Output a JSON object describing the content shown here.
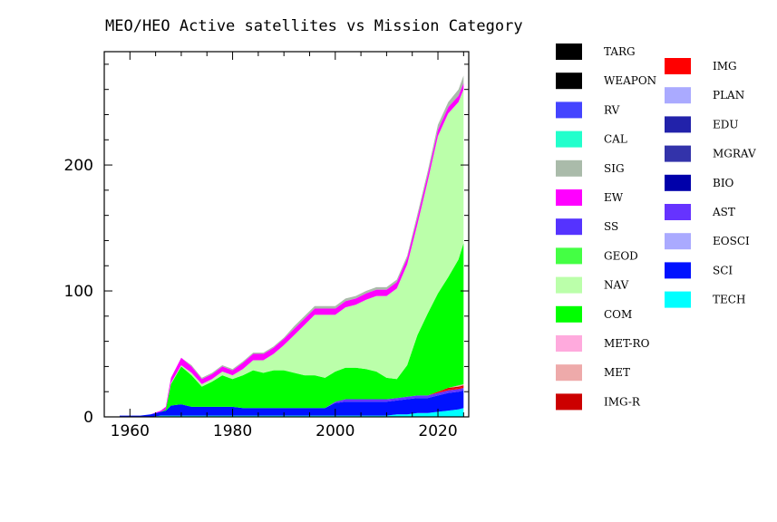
{
  "chart_data": {
    "type": "area",
    "title": "MEO/HEO Active satellites vs Mission Category",
    "xlabel": "",
    "ylabel": "",
    "xlim": [
      1955,
      2026
    ],
    "ylim": [
      0,
      290
    ],
    "x_ticks": [
      1960,
      1980,
      2000,
      2020
    ],
    "x_tick_labels": [
      "1960",
      "1980",
      "2000",
      "2020"
    ],
    "y_ticks": [
      0,
      100,
      200
    ],
    "y_tick_labels": [
      "0",
      "100",
      "200"
    ],
    "grid": false,
    "legend_position": "right",
    "x": [
      1958,
      1962,
      1964,
      1966,
      1967,
      1968,
      1970,
      1972,
      1974,
      1976,
      1978,
      1980,
      1982,
      1984,
      1986,
      1988,
      1990,
      1992,
      1994,
      1996,
      1998,
      2000,
      2002,
      2004,
      2006,
      2008,
      2010,
      2012,
      2014,
      2016,
      2018,
      2020,
      2022,
      2024,
      2025
    ],
    "stack_order": [
      "TECH",
      "SCI",
      "EOSCI",
      "AST",
      "BIO",
      "MGRAV",
      "EDU",
      "PLAN",
      "IMG",
      "IMG-R",
      "MET",
      "MET-RO",
      "COM",
      "NAV",
      "GEOD",
      "SS",
      "EW",
      "SIG",
      "CAL",
      "RV",
      "WEAPON",
      "TARG"
    ],
    "series": [
      {
        "name": "TARG",
        "color": "#000000",
        "values": [
          0,
          0,
          0,
          0,
          0,
          0,
          0,
          0,
          0,
          0,
          0,
          0,
          0,
          0,
          0,
          0,
          0,
          0,
          0,
          0,
          0,
          0,
          0,
          0,
          0,
          0,
          0,
          0,
          0,
          0,
          0,
          0,
          0,
          0,
          0
        ]
      },
      {
        "name": "WEAPON",
        "color": "#000000",
        "values": [
          0,
          0,
          0,
          0,
          0,
          0,
          0,
          0,
          0,
          0,
          0,
          0,
          0,
          0,
          0,
          0,
          0,
          0,
          0,
          0,
          0,
          0,
          0,
          0,
          0,
          0,
          0,
          0,
          0,
          0,
          0,
          0,
          0,
          0,
          0
        ]
      },
      {
        "name": "RV",
        "color": "#4444ff",
        "values": [
          0,
          0,
          0,
          0,
          0,
          0,
          0,
          0,
          0,
          0,
          0,
          0,
          0,
          0,
          0,
          0,
          0,
          0,
          0,
          0,
          0,
          0,
          0,
          0,
          0,
          0,
          0,
          0,
          0,
          0,
          0,
          0,
          0,
          0,
          0
        ]
      },
      {
        "name": "CAL",
        "color": "#22ffcc",
        "values": [
          0,
          0,
          0,
          0,
          0,
          0,
          0,
          0,
          0,
          0,
          0,
          0,
          0,
          0,
          0,
          0,
          0,
          0,
          0,
          0,
          0,
          0,
          0,
          0,
          0,
          0,
          0,
          0,
          0,
          0,
          0,
          0,
          0,
          0,
          0
        ]
      },
      {
        "name": "SIG",
        "color": "#aabbaa",
        "values": [
          0,
          0,
          0,
          0,
          0,
          0,
          0,
          1,
          1,
          1,
          1,
          1,
          1,
          1,
          1,
          1,
          1,
          2,
          2,
          2,
          2,
          2,
          2,
          2,
          2,
          2,
          2,
          2,
          2,
          3,
          3,
          4,
          4,
          5,
          6
        ]
      },
      {
        "name": "EW",
        "color": "#ff00ff",
        "values": [
          0,
          0,
          0,
          1,
          2,
          4,
          6,
          5,
          4,
          4,
          4,
          4,
          5,
          5,
          5,
          5,
          5,
          5,
          5,
          5,
          5,
          5,
          5,
          5,
          5,
          5,
          5,
          5,
          5,
          5,
          5,
          5,
          5,
          5,
          5
        ]
      },
      {
        "name": "SS",
        "color": "#5533ff",
        "values": [
          0,
          0,
          0,
          0,
          0,
          0,
          0,
          0,
          0,
          0,
          0,
          0,
          0,
          0,
          0,
          0,
          0,
          0,
          0,
          0,
          0,
          0,
          0,
          0,
          0,
          0,
          0,
          0,
          0,
          0,
          0,
          0,
          0,
          0,
          0
        ]
      },
      {
        "name": "GEOD",
        "color": "#44ff44",
        "values": [
          0,
          0,
          0,
          0,
          0,
          0,
          0,
          0,
          0,
          0,
          0,
          0,
          0,
          0,
          0,
          0,
          0,
          0,
          0,
          0,
          0,
          0,
          0,
          0,
          0,
          0,
          0,
          0,
          0,
          0,
          0,
          0,
          0,
          0,
          0
        ]
      },
      {
        "name": "NAV",
        "color": "#bbffaa",
        "values": [
          0,
          0,
          0,
          0,
          0,
          1,
          1,
          2,
          2,
          2,
          3,
          3,
          5,
          8,
          10,
          13,
          20,
          30,
          40,
          48,
          50,
          45,
          48,
          50,
          55,
          60,
          65,
          72,
          80,
          88,
          105,
          125,
          130,
          125,
          122
        ]
      },
      {
        "name": "COM",
        "color": "#00ff00",
        "values": [
          0,
          0,
          0,
          0,
          1,
          17,
          30,
          25,
          16,
          20,
          25,
          22,
          26,
          30,
          28,
          30,
          30,
          28,
          26,
          26,
          24,
          24,
          25,
          25,
          24,
          22,
          17,
          15,
          25,
          48,
          65,
          78,
          88,
          100,
          112
        ]
      },
      {
        "name": "MET-RO",
        "color": "#ffaadd",
        "values": [
          0,
          0,
          0,
          0,
          0,
          0,
          0,
          0,
          0,
          0,
          0,
          0,
          0,
          0,
          0,
          0,
          0,
          0,
          0,
          0,
          0,
          0,
          0,
          0,
          0,
          0,
          0,
          0,
          0,
          0,
          0,
          0,
          0,
          0,
          0
        ]
      },
      {
        "name": "MET",
        "color": "#eeaaaa",
        "values": [
          0,
          0,
          0,
          0,
          0,
          0,
          0,
          0,
          0,
          0,
          0,
          0,
          0,
          0,
          0,
          0,
          0,
          0,
          0,
          0,
          0,
          0,
          0,
          0,
          0,
          0,
          0,
          0,
          0,
          0,
          0,
          0,
          0,
          1,
          1
        ]
      },
      {
        "name": "IMG-R",
        "color": "#cc0000",
        "values": [
          0,
          0,
          0,
          0,
          0,
          0,
          0,
          0,
          0,
          0,
          0,
          0,
          0,
          0,
          0,
          0,
          0,
          0,
          0,
          0,
          0,
          0,
          0,
          0,
          0,
          0,
          0,
          0,
          0,
          0,
          0,
          0,
          1,
          1,
          1
        ]
      },
      {
        "name": "IMG",
        "color": "#ff0000",
        "values": [
          0,
          0,
          0,
          0,
          0,
          0,
          0,
          0,
          0,
          0,
          0,
          0,
          0,
          0,
          0,
          0,
          0,
          0,
          0,
          0,
          0,
          0,
          0,
          0,
          0,
          0,
          0,
          0,
          0,
          0,
          0,
          1,
          1,
          1,
          1
        ]
      },
      {
        "name": "PLAN",
        "color": "#aaaaff",
        "values": [
          0,
          0,
          0,
          0,
          0,
          0,
          0,
          0,
          0,
          0,
          0,
          0,
          0,
          0,
          0,
          0,
          0,
          0,
          0,
          0,
          0,
          0,
          0,
          0,
          0,
          0,
          0,
          0,
          0,
          0,
          0,
          0,
          0,
          0,
          0
        ]
      },
      {
        "name": "EDU",
        "color": "#2222aa",
        "values": [
          0,
          0,
          0,
          0,
          0,
          0,
          0,
          0,
          0,
          0,
          0,
          0,
          0,
          0,
          0,
          0,
          0,
          0,
          0,
          0,
          0,
          0,
          0,
          0,
          0,
          0,
          0,
          0,
          0,
          0,
          0,
          0,
          0,
          0,
          0
        ]
      },
      {
        "name": "MGRAV",
        "color": "#3333aa",
        "values": [
          0,
          0,
          0,
          0,
          0,
          0,
          0,
          0,
          0,
          0,
          0,
          0,
          0,
          0,
          0,
          0,
          0,
          0,
          0,
          0,
          0,
          0,
          0,
          0,
          0,
          0,
          0,
          0,
          0,
          0,
          0,
          0,
          0,
          0,
          0
        ]
      },
      {
        "name": "BIO",
        "color": "#0000aa",
        "values": [
          0,
          0,
          0,
          0,
          0,
          0,
          0,
          0,
          0,
          0,
          0,
          0,
          0,
          0,
          0,
          0,
          0,
          0,
          0,
          0,
          0,
          0,
          0,
          0,
          0,
          0,
          0,
          0,
          0,
          0,
          0,
          0,
          0,
          0,
          0
        ]
      },
      {
        "name": "AST",
        "color": "#6633ff",
        "values": [
          0,
          0,
          0,
          0,
          0,
          0,
          0,
          0,
          0,
          0,
          0,
          0,
          0,
          0,
          0,
          0,
          0,
          0,
          0,
          0,
          0,
          1,
          2,
          2,
          2,
          2,
          2,
          2,
          2,
          2,
          2,
          2,
          2,
          2,
          2
        ]
      },
      {
        "name": "EOSCI",
        "color": "#aaaaff",
        "values": [
          0,
          0,
          0,
          0,
          0,
          0,
          0,
          0,
          0,
          0,
          0,
          0,
          0,
          0,
          0,
          0,
          0,
          0,
          0,
          0,
          0,
          0,
          0,
          0,
          0,
          0,
          0,
          0,
          0,
          0,
          0,
          0,
          0,
          0,
          0
        ]
      },
      {
        "name": "SCI",
        "color": "#0011ff",
        "values": [
          1,
          1,
          2,
          3,
          4,
          8,
          9,
          7,
          7,
          7,
          7,
          7,
          6,
          6,
          6,
          6,
          6,
          6,
          6,
          6,
          6,
          10,
          11,
          11,
          11,
          11,
          11,
          11,
          12,
          12,
          12,
          13,
          14,
          14,
          14
        ]
      },
      {
        "name": "TECH",
        "color": "#00ffff",
        "values": [
          0,
          0,
          0,
          1,
          1,
          1,
          1,
          1,
          1,
          1,
          1,
          1,
          1,
          1,
          1,
          1,
          1,
          1,
          1,
          1,
          1,
          1,
          1,
          1,
          1,
          1,
          1,
          2,
          2,
          3,
          3,
          4,
          5,
          6,
          7
        ]
      }
    ]
  }
}
